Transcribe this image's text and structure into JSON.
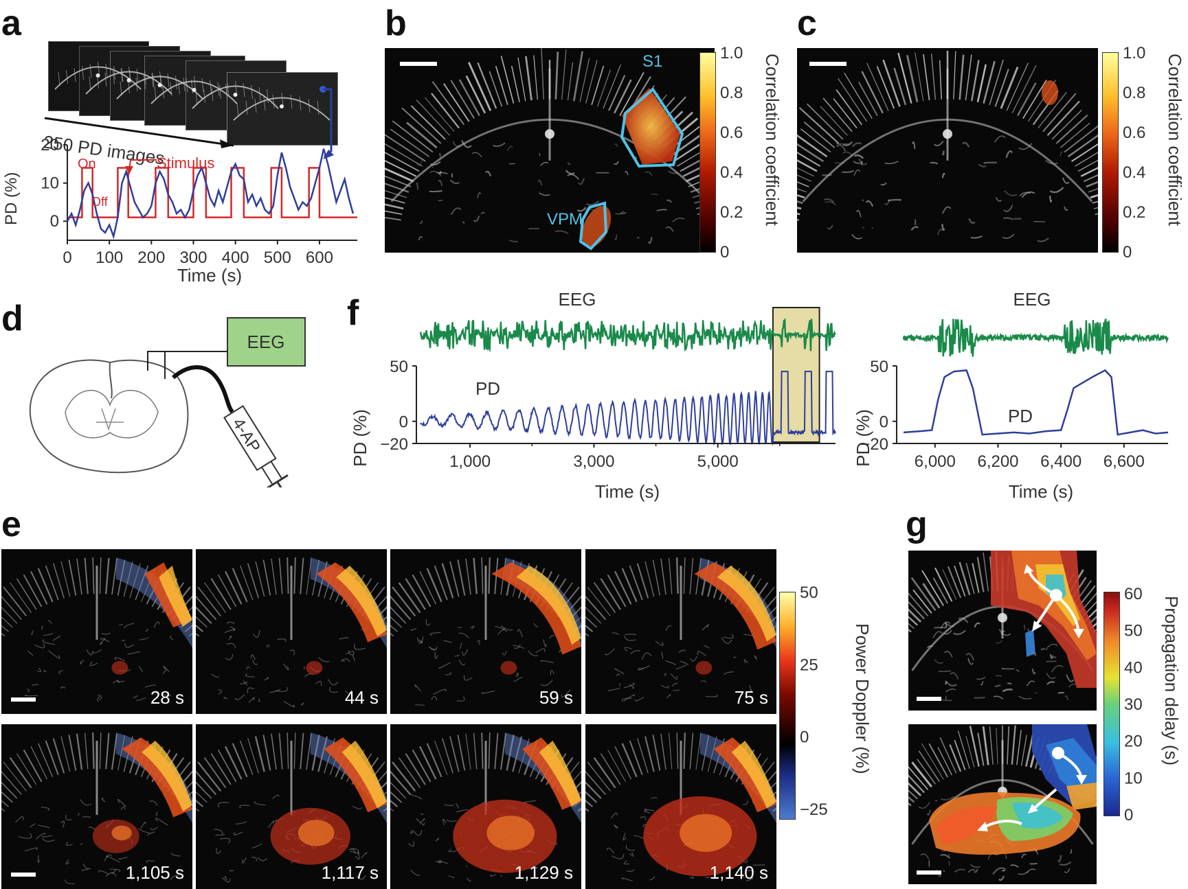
{
  "panels": {
    "a": {
      "letter": "a",
      "stack_label": "250 PD images",
      "on_label": "On",
      "off_label": "Off",
      "stimulus_label": "Stimulus",
      "ylabel": "PD (%)",
      "xlabel": "Time (s)",
      "yticks": [
        "20",
        "10",
        "0"
      ],
      "xticks": [
        "0",
        "100",
        "200",
        "300",
        "400",
        "500",
        "600"
      ]
    },
    "b": {
      "letter": "b",
      "roi_s1": "S1",
      "roi_vpm": "VPM",
      "colorbar_label": "Correlation coefficient",
      "colorbar_ticks": [
        "1.0",
        "0.8",
        "0.6",
        "0.4",
        "0.2",
        "0"
      ]
    },
    "c": {
      "letter": "c",
      "colorbar_label": "Correlation coefficient",
      "colorbar_ticks": [
        "1.0",
        "0.8",
        "0.6",
        "0.4",
        "0.2",
        "0"
      ]
    },
    "d": {
      "letter": "d",
      "eeg_box": "EEG",
      "syringe_label": "4-AP"
    },
    "e": {
      "letter": "e",
      "colorbar_label": "Power Doppler (%)",
      "colorbar_ticks": [
        "50",
        "25",
        "0",
        "−25"
      ],
      "frames_top": [
        "28 s",
        "44 s",
        "59 s",
        "75 s"
      ],
      "frames_bottom": [
        "1,105 s",
        "1,117 s",
        "1,129 s",
        "1,140 s"
      ]
    },
    "f": {
      "letter": "f",
      "eeg_label": "EEG",
      "pd_label": "PD",
      "ylabel": "PD (%)",
      "yticks": [
        "50",
        "0",
        "−20"
      ],
      "xlabel": "Time (s)",
      "xticks_left": [
        "1,000",
        "3,000",
        "5,000"
      ],
      "xticks_right": [
        "6,000",
        "6,200",
        "6,400",
        "6,600"
      ]
    },
    "g": {
      "letter": "g",
      "colorbar_label": "Propagation delay (s)",
      "colorbar_ticks": [
        "60",
        "50",
        "40",
        "30",
        "20",
        "10",
        "0"
      ]
    }
  },
  "chart_data": [
    {
      "type": "line",
      "panel": "a",
      "xlabel": "Time (s)",
      "ylabel": "PD (%)",
      "xlim": [
        0,
        690
      ],
      "ylim": [
        -5,
        22
      ],
      "series": [
        {
          "name": "Stimulus",
          "color": "#d62728",
          "x": [
            0,
            35,
            35,
            60,
            60,
            120,
            120,
            145,
            145,
            210,
            210,
            240,
            240,
            300,
            300,
            330,
            330,
            390,
            390,
            420,
            420,
            485,
            485,
            510,
            510,
            575,
            575,
            600,
            600,
            690
          ],
          "y": [
            1,
            1,
            14,
            14,
            1,
            1,
            14,
            14,
            1,
            1,
            14,
            14,
            1,
            1,
            14,
            14,
            1,
            1,
            14,
            14,
            1,
            1,
            14,
            14,
            1,
            1,
            14,
            14,
            1,
            1
          ]
        },
        {
          "name": "PD",
          "color": "#2e3e9c",
          "x": [
            0,
            10,
            20,
            30,
            40,
            50,
            60,
            70,
            80,
            90,
            100,
            110,
            120,
            130,
            140,
            150,
            160,
            170,
            180,
            190,
            200,
            210,
            220,
            230,
            240,
            250,
            260,
            270,
            280,
            290,
            300,
            310,
            320,
            330,
            340,
            350,
            360,
            370,
            380,
            390,
            400,
            410,
            420,
            430,
            440,
            450,
            460,
            470,
            480,
            490,
            500,
            510,
            520,
            530,
            540,
            550,
            560,
            570,
            580,
            590,
            600,
            610,
            620,
            630,
            640,
            650,
            660,
            670,
            680
          ],
          "y": [
            0,
            2,
            -1,
            3,
            8,
            10,
            7,
            2,
            -2,
            -3,
            -1,
            -4,
            1,
            10,
            13,
            9,
            5,
            3,
            1,
            2,
            4,
            10,
            13,
            11,
            7,
            5,
            2,
            3,
            1,
            3,
            8,
            12,
            14,
            10,
            6,
            4,
            8,
            5,
            9,
            13,
            15,
            12,
            11,
            5,
            7,
            4,
            6,
            3,
            2,
            4,
            12,
            18,
            14,
            9,
            6,
            3,
            5,
            4,
            6,
            10,
            14,
            19,
            15,
            10,
            5,
            8,
            11,
            6,
            2
          ]
        }
      ]
    },
    {
      "type": "line",
      "panel": "f-left",
      "xlabel": "Time (s)",
      "ylabel": "PD (%)",
      "xlim": [
        200,
        6900
      ],
      "ylim": [
        -20,
        50
      ],
      "series": [
        {
          "name": "EEG",
          "color": "#1a8a4a"
        },
        {
          "name": "PD",
          "color": "#2e3e9c"
        }
      ]
    },
    {
      "type": "line",
      "panel": "f-right",
      "xlabel": "Time (s)",
      "ylabel": "PD (%)",
      "xlim": [
        5900,
        6740
      ],
      "ylim": [
        -20,
        50
      ],
      "series": [
        {
          "name": "EEG",
          "color": "#1a8a4a"
        },
        {
          "name": "PD",
          "color": "#2e3e9c",
          "x": [
            5900,
            5950,
            5990,
            6010,
            6030,
            6060,
            6100,
            6120,
            6150,
            6200,
            6250,
            6300,
            6350,
            6400,
            6420,
            6440,
            6470,
            6500,
            6540,
            6560,
            6580,
            6620,
            6660,
            6700,
            6740
          ],
          "y": [
            -10,
            -9,
            -8,
            20,
            40,
            45,
            46,
            30,
            -12,
            -11,
            -10,
            -11,
            -9,
            -8,
            10,
            30,
            35,
            40,
            46,
            40,
            -12,
            -10,
            -8,
            -11,
            -10
          ]
        }
      ]
    }
  ]
}
